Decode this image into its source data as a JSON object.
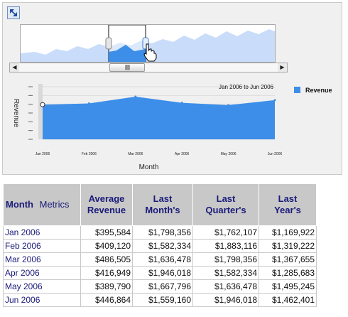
{
  "corner_button": {
    "icon": "resize-arrows-icon"
  },
  "overview": {
    "series_color": "#3d8ee9",
    "background_series_color": "#c9dcfa"
  },
  "scrollbar": {
    "left_arrow": "◀",
    "right_arrow": "▶",
    "thumb_grip": "||||||"
  },
  "chart_data": {
    "type": "area",
    "title": "Jan 2006 to Jun 2006",
    "xlabel": "Month",
    "ylabel": "Revenue",
    "categories": [
      "Jan 2006",
      "Feb 2006",
      "Mar 2006",
      "Apr 2006",
      "May 2006",
      "Jun 2006"
    ],
    "series": [
      {
        "name": "Revenue",
        "values": [
          395584,
          409120,
          486505,
          416949,
          389790,
          446864
        ],
        "color": "#3d8ee9"
      }
    ],
    "ylim": [
      0,
      600000
    ],
    "grid": true,
    "legend_position": "right"
  },
  "table": {
    "headers": {
      "month": "Month",
      "metrics": "Metrics",
      "avg": [
        "Average",
        "Revenue"
      ],
      "last_month": [
        "Last",
        "Month's"
      ],
      "last_quarter": [
        "Last",
        "Quarter's"
      ],
      "last_year": [
        "Last",
        "Year's"
      ]
    },
    "rows": [
      {
        "month": "Jan 2006",
        "avg": "$395,584",
        "lm": "$1,798,356",
        "lq": "$1,762,107",
        "ly": "$1,169,922"
      },
      {
        "month": "Feb 2006",
        "avg": "$409,120",
        "lm": "$1,582,334",
        "lq": "$1,883,116",
        "ly": "$1,319,222"
      },
      {
        "month": "Mar 2006",
        "avg": "$486,505",
        "lm": "$1,636,478",
        "lq": "$1,798,356",
        "ly": "$1,367,655"
      },
      {
        "month": "Apr 2006",
        "avg": "$416,949",
        "lm": "$1,946,018",
        "lq": "$1,582,334",
        "ly": "$1,285,683"
      },
      {
        "month": "May 2006",
        "avg": "$389,790",
        "lm": "$1,667,796",
        "lq": "$1,636,478",
        "ly": "$1,495,245"
      },
      {
        "month": "Jun 2006",
        "avg": "$446,864",
        "lm": "$1,559,160",
        "lq": "$1,946,018",
        "ly": "$1,462,401"
      }
    ]
  }
}
